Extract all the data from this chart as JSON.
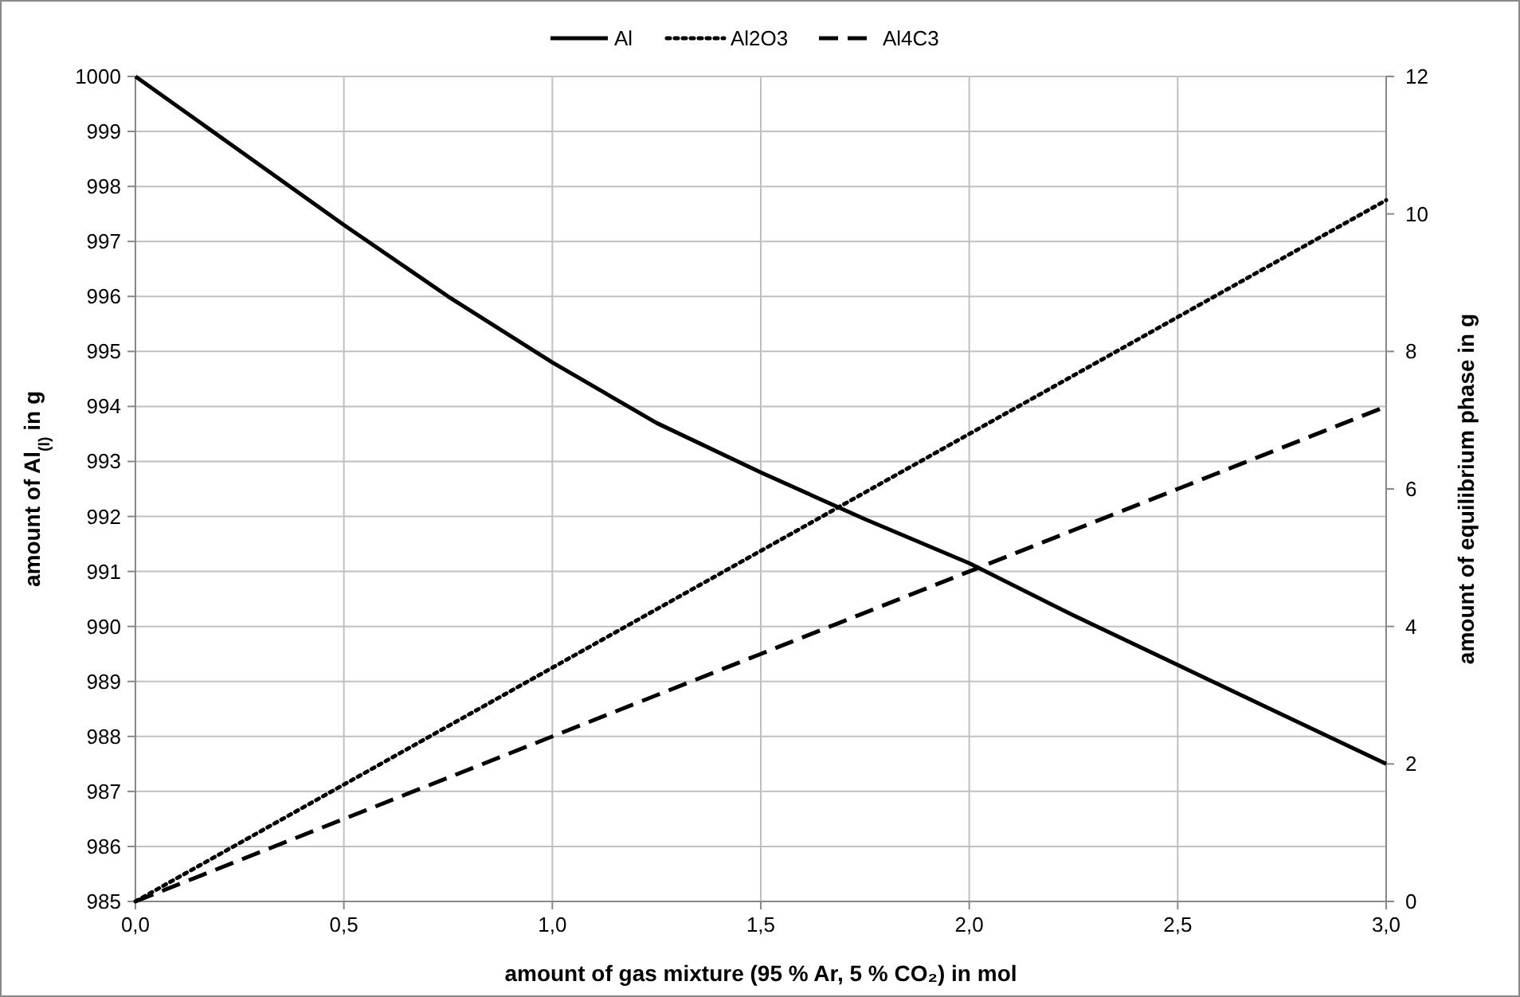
{
  "chart_data": {
    "type": "line",
    "xlabel": "amount of gas mixture (95 % Ar, 5 % CO₂) in mol",
    "ylabel": "amount of Al$_{(l)}$ in g",
    "y2label": "amount of equilibrium phase in g",
    "x": [
      0,
      0.25,
      0.5,
      0.75,
      1.0,
      1.25,
      1.5,
      1.75,
      2.0,
      2.25,
      2.5,
      2.75,
      3.0
    ],
    "series": [
      {
        "name": "Al",
        "color": "#000000",
        "line_style": "solid",
        "values": [
          1000,
          998.65,
          997.3,
          996.0,
          994.8,
          993.7,
          992.8,
          991.95,
          991.15,
          990.2,
          989.3,
          988.4,
          987.5
        ]
      },
      {
        "name": "Al2O3",
        "color": "#000000",
        "line_style": "dotted",
        "axis": "y2",
        "values": [
          0,
          0.85,
          1.7,
          2.55,
          3.4,
          4.25,
          5.1,
          5.95,
          6.8,
          7.65,
          8.5,
          9.35,
          10.2
        ]
      },
      {
        "name": "Al4C3",
        "color": "#000000",
        "line_style": "dashed",
        "axis": "y2",
        "values": [
          0,
          0.6,
          1.2,
          1.8,
          2.4,
          3.0,
          3.6,
          4.2,
          4.8,
          5.4,
          6.0,
          6.6,
          7.2
        ]
      }
    ],
    "xlim": [
      0,
      3
    ],
    "xticks": [
      {
        "value": 0,
        "label": "0,0"
      },
      {
        "value": 0.5,
        "label": "0,5"
      },
      {
        "value": 1,
        "label": "1,0"
      },
      {
        "value": 1.5,
        "label": "1,5"
      },
      {
        "value": 2,
        "label": "2,0"
      },
      {
        "value": 2.5,
        "label": "2,5"
      },
      {
        "value": 3,
        "label": "3,0"
      }
    ],
    "ylim": [
      985,
      1000
    ],
    "yticks": [
      985,
      986,
      987,
      988,
      989,
      990,
      991,
      992,
      993,
      994,
      995,
      996,
      997,
      998,
      999,
      1000
    ],
    "y2lim": [
      0,
      12
    ],
    "y2ticks": [
      0,
      2,
      4,
      6,
      8,
      10,
      12
    ],
    "grid": true,
    "legend": "top"
  }
}
